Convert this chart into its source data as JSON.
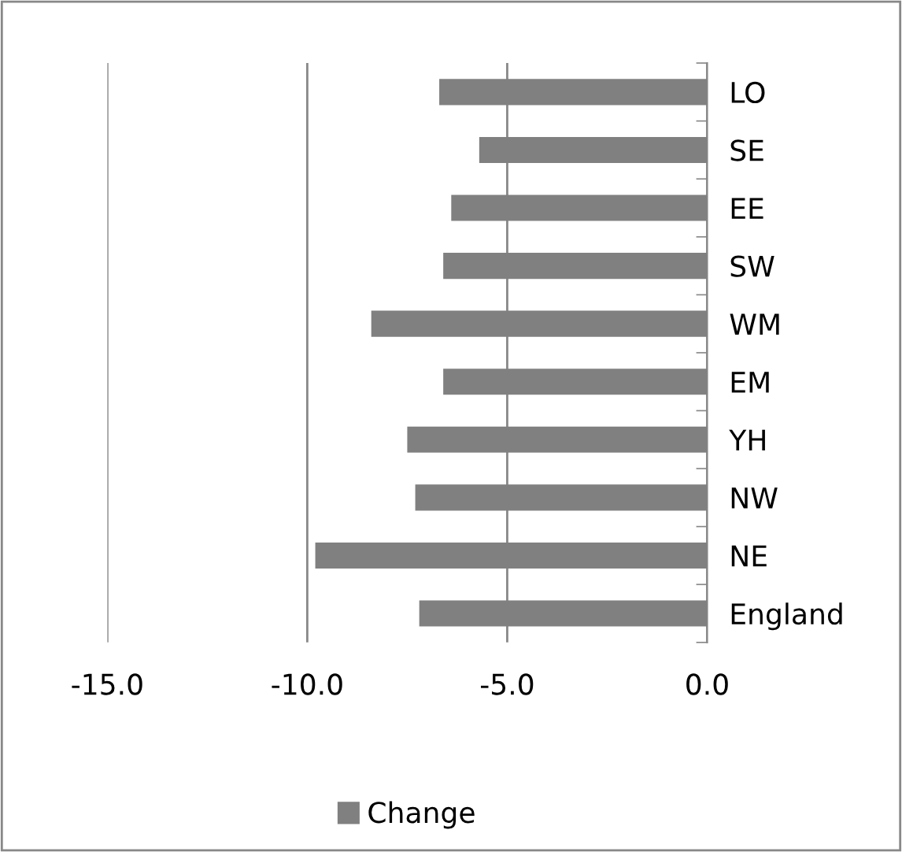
{
  "chart_data": {
    "type": "bar",
    "orientation": "horizontal",
    "categories": [
      "LO",
      "SE",
      "EE",
      "SW",
      "WM",
      "EM",
      "YH",
      "NW",
      "NE",
      "England"
    ],
    "series": [
      {
        "name": "Change",
        "color": "#808080",
        "values": [
          -6.7,
          -5.7,
          -6.4,
          -6.6,
          -8.4,
          -6.6,
          -7.5,
          -7.3,
          -9.8,
          -7.2
        ]
      }
    ],
    "xlim": [
      -15,
      0
    ],
    "xticks": [
      {
        "value": -15,
        "label": "-15.0"
      },
      {
        "value": -10,
        "label": "-10.0"
      },
      {
        "value": -5,
        "label": "-5.0"
      },
      {
        "value": 0,
        "label": "0.0"
      }
    ],
    "grid": "x",
    "legend": "bottom"
  }
}
